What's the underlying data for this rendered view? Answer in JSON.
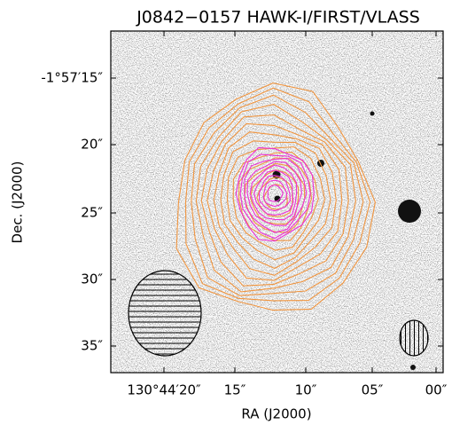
{
  "figure": {
    "title": "J0842−0157 HAWK-I/FIRST/VLASS",
    "x_axis": {
      "label": "RA (J2000)",
      "tick_labels": [
        "130°44′20″",
        "15″",
        "10″",
        "05″",
        "00″"
      ]
    },
    "y_axis": {
      "label": "Dec. (J2000)",
      "tick_labels": [
        "-1°57′15″",
        "20″",
        "25″",
        "30″",
        "35″"
      ]
    }
  }
}
